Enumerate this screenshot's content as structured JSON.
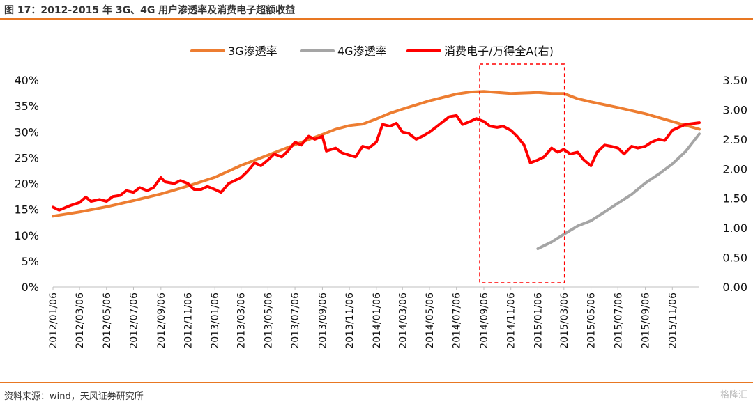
{
  "header": {
    "title": "图 17：2012-2015 年 3G、4G 用户渗透率及消费电子超额收益"
  },
  "footer": {
    "source": "资料来源：wind，天风证券研究所",
    "watermark": "格隆汇"
  },
  "colors": {
    "accent": "#e87722",
    "series_3g": "#ed7d31",
    "series_4g": "#a5a5a5",
    "series_ce": "#ff0000",
    "highlight_box": "#ff0000"
  },
  "chart_data": {
    "type": "line",
    "title": "",
    "xlabel": "",
    "ylabel_left": "",
    "ylabel_right": "",
    "x_range": [
      "2012-01-06",
      "2016-01-06"
    ],
    "ylim_left": [
      0,
      40
    ],
    "ylim_right": [
      0,
      3.5
    ],
    "yticks_left": [
      "0%",
      "5%",
      "10%",
      "15%",
      "20%",
      "25%",
      "30%",
      "35%",
      "40%"
    ],
    "yticks_right": [
      "0.00",
      "0.50",
      "1.00",
      "1.50",
      "2.00",
      "2.50",
      "3.00",
      "3.50"
    ],
    "xticks": [
      "2012/01/06",
      "2012/03/06",
      "2012/05/06",
      "2012/07/06",
      "2012/09/06",
      "2012/11/06",
      "2013/01/06",
      "2013/03/06",
      "2013/05/06",
      "2013/07/06",
      "2013/09/06",
      "2013/11/06",
      "2014/01/06",
      "2014/03/06",
      "2014/05/06",
      "2014/07/06",
      "2014/09/06",
      "2014/11/06",
      "2015/01/06",
      "2015/03/06",
      "2015/05/06",
      "2015/07/06",
      "2015/09/06",
      "2015/11/06"
    ],
    "legend_position": "top",
    "grid": false,
    "series": [
      {
        "name": "3G渗透率",
        "axis": "left",
        "color": "#ed7d31",
        "points": [
          [
            "2012-01-06",
            13.7
          ],
          [
            "2012-03-06",
            14.5
          ],
          [
            "2012-05-06",
            15.5
          ],
          [
            "2012-07-06",
            16.7
          ],
          [
            "2012-09-06",
            18.0
          ],
          [
            "2012-11-06",
            19.5
          ],
          [
            "2013-01-06",
            21.2
          ],
          [
            "2013-03-06",
            23.5
          ],
          [
            "2013-05-06",
            25.5
          ],
          [
            "2013-07-06",
            27.5
          ],
          [
            "2013-09-06",
            29.5
          ],
          [
            "2013-10-06",
            30.5
          ],
          [
            "2013-11-06",
            31.2
          ],
          [
            "2013-12-06",
            31.5
          ],
          [
            "2014-01-06",
            32.5
          ],
          [
            "2014-02-06",
            33.6
          ],
          [
            "2014-03-06",
            34.4
          ],
          [
            "2014-05-06",
            36.0
          ],
          [
            "2014-07-06",
            37.3
          ],
          [
            "2014-08-06",
            37.7
          ],
          [
            "2014-09-06",
            37.8
          ],
          [
            "2014-11-06",
            37.4
          ],
          [
            "2015-01-06",
            37.6
          ],
          [
            "2015-02-06",
            37.4
          ],
          [
            "2015-03-06",
            37.4
          ],
          [
            "2015-04-06",
            36.4
          ],
          [
            "2015-05-06",
            35.8
          ],
          [
            "2015-07-06",
            34.7
          ],
          [
            "2015-09-06",
            33.5
          ],
          [
            "2015-11-06",
            32.0
          ],
          [
            "2016-01-06",
            30.5
          ]
        ]
      },
      {
        "name": "4G渗透率",
        "axis": "left",
        "color": "#a5a5a5",
        "points": [
          [
            "2015-01-06",
            7.4
          ],
          [
            "2015-02-06",
            8.7
          ],
          [
            "2015-03-06",
            10.2
          ],
          [
            "2015-04-06",
            11.8
          ],
          [
            "2015-05-06",
            12.8
          ],
          [
            "2015-06-06",
            14.5
          ],
          [
            "2015-07-06",
            16.2
          ],
          [
            "2015-08-06",
            17.9
          ],
          [
            "2015-09-06",
            20.1
          ],
          [
            "2015-10-06",
            21.8
          ],
          [
            "2015-11-06",
            23.8
          ],
          [
            "2015-12-06",
            26.2
          ],
          [
            "2016-01-06",
            29.6
          ]
        ]
      },
      {
        "name": "消费电子/万得全A(右)",
        "axis": "right",
        "color": "#ff0000",
        "points": [
          [
            "2012-01-06",
            1.35
          ],
          [
            "2012-01-20",
            1.3
          ],
          [
            "2012-02-15",
            1.38
          ],
          [
            "2012-03-06",
            1.43
          ],
          [
            "2012-03-20",
            1.52
          ],
          [
            "2012-04-01",
            1.45
          ],
          [
            "2012-04-20",
            1.48
          ],
          [
            "2012-05-06",
            1.45
          ],
          [
            "2012-05-20",
            1.53
          ],
          [
            "2012-06-06",
            1.55
          ],
          [
            "2012-06-20",
            1.63
          ],
          [
            "2012-07-06",
            1.6
          ],
          [
            "2012-07-20",
            1.68
          ],
          [
            "2012-08-06",
            1.63
          ],
          [
            "2012-08-20",
            1.68
          ],
          [
            "2012-09-06",
            1.85
          ],
          [
            "2012-09-15",
            1.78
          ],
          [
            "2012-10-06",
            1.75
          ],
          [
            "2012-10-20",
            1.8
          ],
          [
            "2012-11-06",
            1.75
          ],
          [
            "2012-11-20",
            1.65
          ],
          [
            "2012-12-06",
            1.65
          ],
          [
            "2012-12-20",
            1.7
          ],
          [
            "2013-01-06",
            1.65
          ],
          [
            "2013-01-20",
            1.6
          ],
          [
            "2013-02-06",
            1.75
          ],
          [
            "2013-03-06",
            1.85
          ],
          [
            "2013-03-20",
            1.95
          ],
          [
            "2013-04-06",
            2.1
          ],
          [
            "2013-04-20",
            2.05
          ],
          [
            "2013-05-06",
            2.15
          ],
          [
            "2013-05-20",
            2.25
          ],
          [
            "2013-06-06",
            2.2
          ],
          [
            "2013-06-20",
            2.3
          ],
          [
            "2013-07-06",
            2.45
          ],
          [
            "2013-07-20",
            2.4
          ],
          [
            "2013-08-06",
            2.55
          ],
          [
            "2013-08-20",
            2.5
          ],
          [
            "2013-09-06",
            2.55
          ],
          [
            "2013-09-15",
            2.3
          ],
          [
            "2013-10-06",
            2.35
          ],
          [
            "2013-10-20",
            2.27
          ],
          [
            "2013-11-06",
            2.23
          ],
          [
            "2013-11-20",
            2.2
          ],
          [
            "2013-12-06",
            2.38
          ],
          [
            "2013-12-20",
            2.35
          ],
          [
            "2014-01-06",
            2.45
          ],
          [
            "2014-01-20",
            2.75
          ],
          [
            "2014-02-06",
            2.72
          ],
          [
            "2014-02-20",
            2.77
          ],
          [
            "2014-03-06",
            2.62
          ],
          [
            "2014-03-20",
            2.6
          ],
          [
            "2014-04-06",
            2.5
          ],
          [
            "2014-04-20",
            2.55
          ],
          [
            "2014-05-06",
            2.62
          ],
          [
            "2014-05-20",
            2.7
          ],
          [
            "2014-06-06",
            2.8
          ],
          [
            "2014-06-20",
            2.88
          ],
          [
            "2014-07-06",
            2.9
          ],
          [
            "2014-07-20",
            2.75
          ],
          [
            "2014-08-06",
            2.8
          ],
          [
            "2014-08-20",
            2.85
          ],
          [
            "2014-09-06",
            2.8
          ],
          [
            "2014-09-20",
            2.72
          ],
          [
            "2014-10-06",
            2.7
          ],
          [
            "2014-10-20",
            2.72
          ],
          [
            "2014-11-06",
            2.65
          ],
          [
            "2014-11-20",
            2.55
          ],
          [
            "2014-12-06",
            2.4
          ],
          [
            "2014-12-20",
            2.1
          ],
          [
            "2015-01-06",
            2.15
          ],
          [
            "2015-01-20",
            2.2
          ],
          [
            "2015-02-06",
            2.35
          ],
          [
            "2015-02-20",
            2.28
          ],
          [
            "2015-03-06",
            2.33
          ],
          [
            "2015-03-20",
            2.25
          ],
          [
            "2015-04-06",
            2.28
          ],
          [
            "2015-04-20",
            2.15
          ],
          [
            "2015-05-06",
            2.05
          ],
          [
            "2015-05-20",
            2.28
          ],
          [
            "2015-06-06",
            2.4
          ],
          [
            "2015-06-20",
            2.38
          ],
          [
            "2015-07-06",
            2.35
          ],
          [
            "2015-07-20",
            2.25
          ],
          [
            "2015-08-06",
            2.38
          ],
          [
            "2015-08-20",
            2.35
          ],
          [
            "2015-09-06",
            2.38
          ],
          [
            "2015-09-20",
            2.45
          ],
          [
            "2015-10-06",
            2.5
          ],
          [
            "2015-10-20",
            2.48
          ],
          [
            "2015-11-06",
            2.65
          ],
          [
            "2015-11-20",
            2.7
          ],
          [
            "2015-12-06",
            2.75
          ],
          [
            "2016-01-06",
            2.78
          ]
        ]
      }
    ],
    "annotations": [
      {
        "type": "dashed-box",
        "color": "#ff0000",
        "x_range": [
          "2014-09-06",
          "2015-03-01"
        ]
      }
    ]
  }
}
